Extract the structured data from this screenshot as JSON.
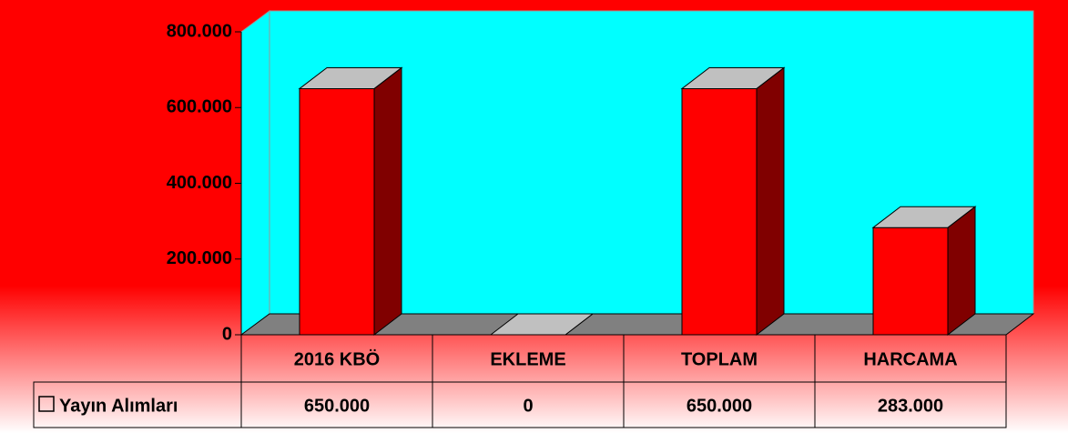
{
  "chart_data": {
    "type": "bar3d",
    "categories": [
      "2016 KBÖ",
      "EKLEME",
      "TOPLAM",
      "HARCAMA"
    ],
    "series": [
      {
        "name": "Yayın Alımları",
        "color": "#ff0000",
        "values": [
          650000,
          0,
          650000,
          283000
        ],
        "value_labels": [
          "650.000",
          "0",
          "650.000",
          "283.000"
        ]
      }
    ],
    "ylim": [
      0,
      800000
    ],
    "yticks": [
      0,
      {
        "value": 200000,
        "label": "200.000"
      },
      {
        "value": 400000,
        "label": "400.000"
      },
      {
        "value": 600000,
        "label": "600.000"
      },
      {
        "value": 800000,
        "label": "800.000"
      }
    ],
    "grid": false,
    "data_table": true
  }
}
